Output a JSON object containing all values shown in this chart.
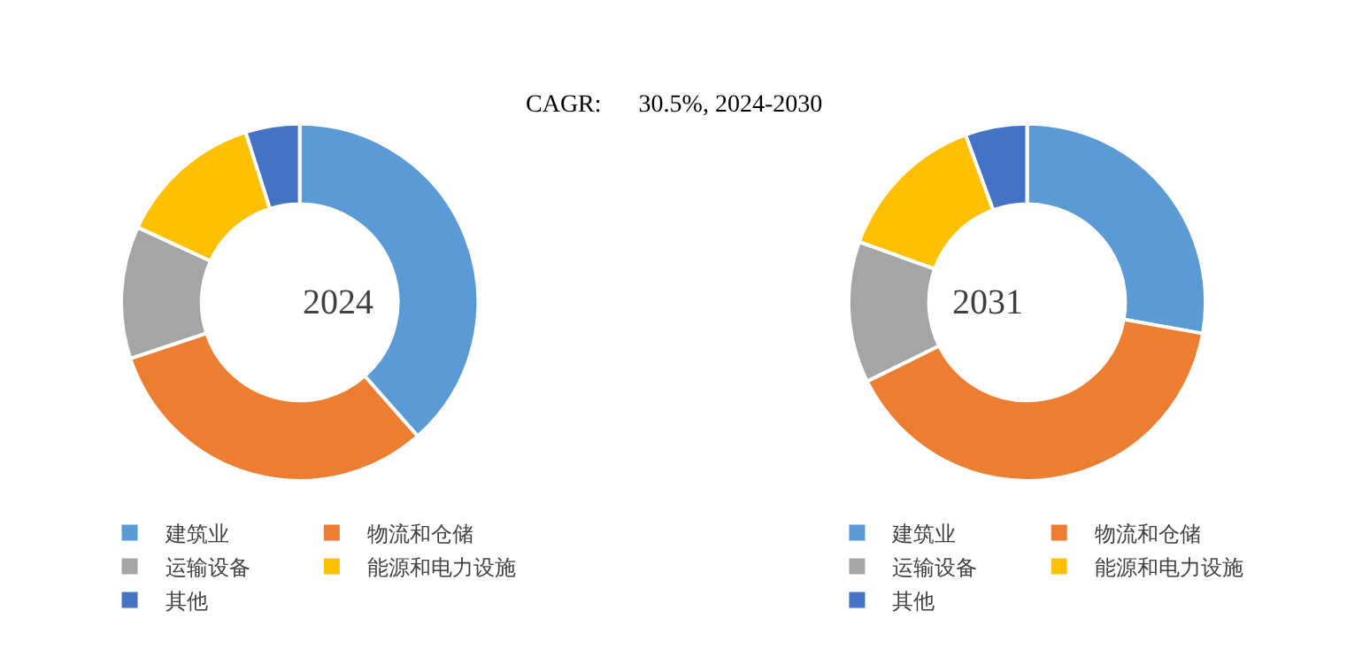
{
  "chart_data": [
    {
      "type": "donut",
      "title": "2024",
      "annotations": [
        "CAGR:      30.5%, 2024-2030"
      ],
      "legend": "bottom",
      "categories": [
        "建筑业",
        "物流和仓储",
        "运输设备",
        "能源和电力设施",
        "其他"
      ],
      "values": [
        38.5,
        31.4,
        12.0,
        13.2,
        4.9
      ],
      "colors": [
        "#5b9bd5",
        "#ed7d31",
        "#a5a5a5",
        "#ffc000",
        "#4472c4"
      ]
    },
    {
      "type": "donut",
      "title": "2031",
      "legend": "bottom",
      "categories": [
        "建筑业",
        "物流和仓储",
        "运输设备",
        "能源和电力设施",
        "其他"
      ],
      "values": [
        27.8,
        39.9,
        12.8,
        13.9,
        5.6
      ],
      "colors": [
        "#5b9bd5",
        "#ed7d31",
        "#a5a5a5",
        "#ffc000",
        "#4472c4"
      ]
    }
  ]
}
